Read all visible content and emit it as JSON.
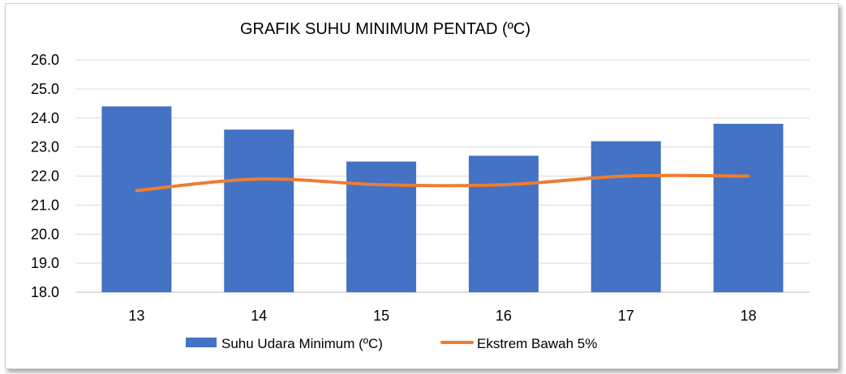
{
  "chart_data": {
    "type": "bar",
    "title": "GRAFIK SUHU MINIMUM PENTAD (ºC)",
    "categories": [
      "13",
      "14",
      "15",
      "16",
      "17",
      "18"
    ],
    "series": [
      {
        "name": "Suhu Udara Minimum (ºC)",
        "type": "bar",
        "color": "#4472c4",
        "values": [
          24.4,
          23.6,
          22.5,
          22.7,
          23.2,
          23.8
        ]
      },
      {
        "name": "Ekstrem Bawah  5%",
        "type": "line",
        "smooth": true,
        "color": "#ed7d31",
        "values": [
          21.5,
          21.9,
          21.7,
          21.7,
          22.0,
          22.0
        ]
      }
    ],
    "ylim": [
      18.0,
      26.0
    ],
    "yticks": [
      "18.0",
      "19.0",
      "20.0",
      "21.0",
      "22.0",
      "23.0",
      "24.0",
      "25.0",
      "26.0"
    ],
    "grid": true,
    "legend_position": "bottom"
  }
}
